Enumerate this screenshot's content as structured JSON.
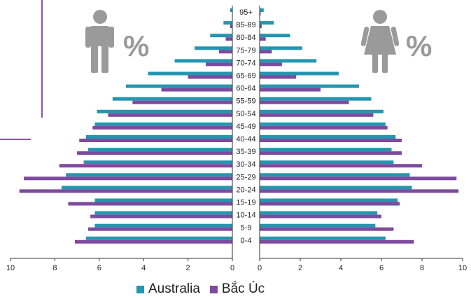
{
  "chart_data": {
    "type": "bar",
    "orientation": "horizontal",
    "layout": "population-pyramid",
    "categories": [
      "95+",
      "85-89",
      "80-84",
      "75-79",
      "70-74",
      "65-69",
      "60-64",
      "55-59",
      "50-54",
      "45-49",
      "40-44",
      "35-39",
      "30-34",
      "25-29",
      "20-24",
      "15-19",
      "10-14",
      "5-9",
      "0-4"
    ],
    "panels": [
      {
        "name": "male",
        "label": "%",
        "icon": "male-person-icon",
        "xlim": [
          10,
          0
        ],
        "ticks": [
          "10",
          "8",
          "6",
          "4",
          "2",
          "0"
        ],
        "series": [
          {
            "name": "Australia",
            "color": "#2496b0",
            "values": [
              0.1,
              0.4,
              1.0,
              1.7,
              2.6,
              3.8,
              4.8,
              5.4,
              6.1,
              6.2,
              6.6,
              6.5,
              6.7,
              7.5,
              7.7,
              6.2,
              6.2,
              6.2,
              6.6
            ]
          },
          {
            "name": "Bắc Úc",
            "color": "#7d4a9e",
            "values": [
              0.0,
              0.1,
              0.3,
              0.6,
              1.2,
              2.0,
              3.2,
              4.5,
              5.6,
              6.3,
              6.9,
              7.0,
              7.8,
              9.4,
              9.6,
              7.4,
              6.4,
              6.5,
              7.1
            ]
          }
        ]
      },
      {
        "name": "female",
        "label": "%",
        "icon": "female-person-icon",
        "xlim": [
          0,
          10
        ],
        "ticks": [
          "0",
          "2",
          "4",
          "6",
          "8",
          "10"
        ],
        "series": [
          {
            "name": "Australia",
            "color": "#2496b0",
            "values": [
              0.2,
              0.7,
              1.5,
              2.1,
              2.8,
              3.9,
              4.9,
              5.5,
              6.1,
              6.2,
              6.7,
              6.5,
              6.6,
              7.4,
              7.5,
              6.8,
              5.8,
              5.7,
              6.2
            ]
          },
          {
            "name": "Bắc Úc",
            "color": "#7d4a9e",
            "values": [
              0.05,
              0.1,
              0.3,
              0.6,
              1.1,
              1.8,
              3.0,
              4.4,
              5.6,
              6.3,
              7.0,
              7.0,
              8.0,
              9.7,
              9.8,
              6.9,
              6.0,
              6.6,
              7.6
            ]
          }
        ]
      }
    ],
    "legend": [
      {
        "name": "Australia",
        "color": "#2496b0"
      },
      {
        "name": "Bắc Úc",
        "color": "#7d4a9e"
      }
    ],
    "decoration_color": "#8a55b0"
  }
}
